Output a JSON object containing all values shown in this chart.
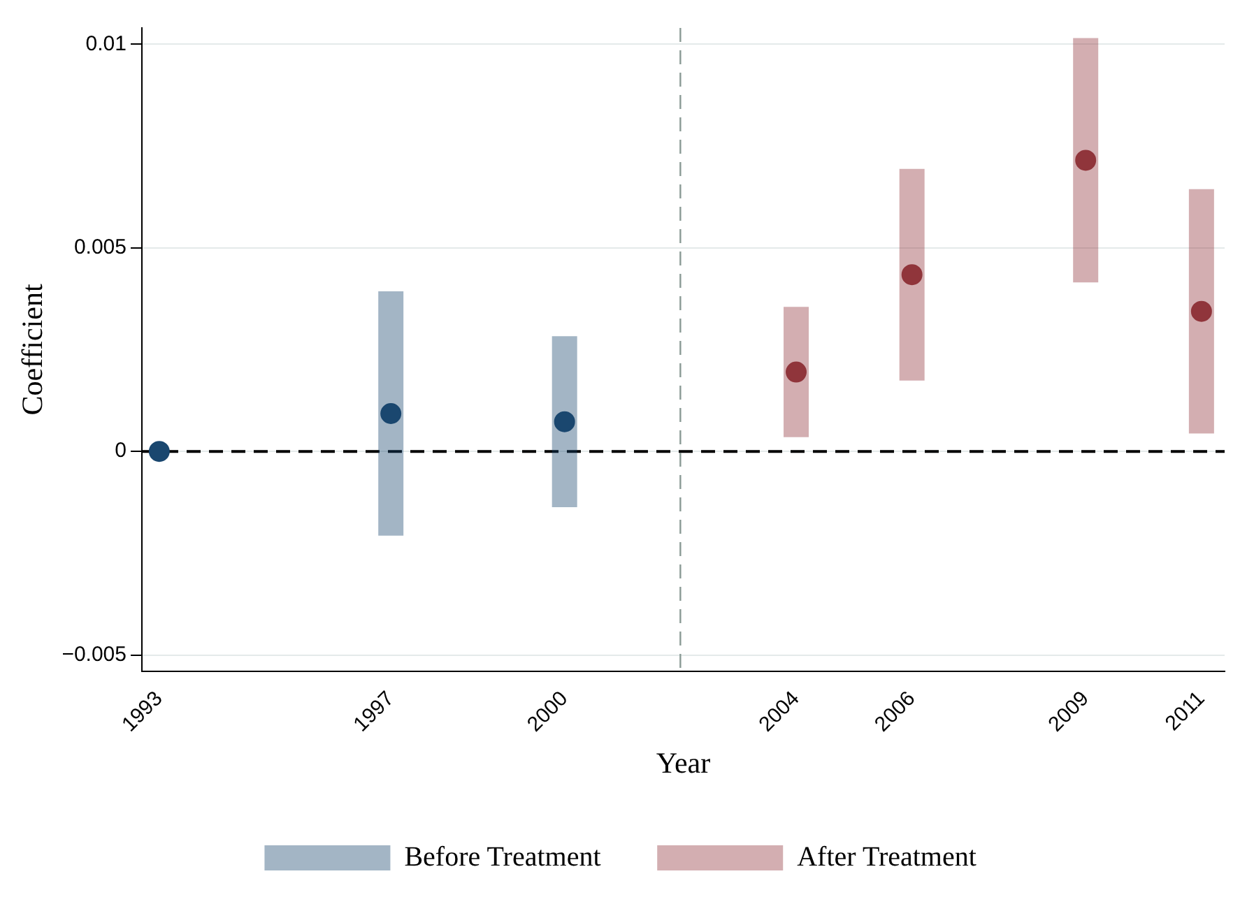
{
  "chart_data": {
    "type": "scatter",
    "xlabel": "Year",
    "ylabel": "Coefficient",
    "xlim": [
      1992.7,
      2011.4
    ],
    "xticks": [
      1993,
      1997,
      2000,
      2004,
      2006,
      2009,
      2011
    ],
    "ylim": [
      -0.0054,
      0.0104
    ],
    "yticks": [
      {
        "value": -0.005,
        "label": "−0.005"
      },
      0,
      0.005,
      0.01
    ],
    "grid": "y",
    "legend": "bottom",
    "marker": "circle",
    "series": [
      {
        "name": "Before Treatment",
        "color": "#1a476f",
        "x": [
          1993,
          1997,
          2000
        ],
        "values": [
          0,
          0.00093,
          0.00073
        ],
        "errors": [
          null,
          0.003,
          0.0021
        ]
      },
      {
        "name": "After Treatment",
        "color": "#90353b",
        "x": [
          2004,
          2006,
          2009,
          2011
        ],
        "values": [
          0.00195,
          0.00434,
          0.00715,
          0.00344
        ],
        "errors": [
          0.0016,
          0.0026,
          0.003,
          0.003
        ]
      }
    ],
    "ref_lines": [
      {
        "axis": "y",
        "value": 0,
        "color": "#000000",
        "line_style": "dashed"
      },
      {
        "axis": "x",
        "value": 2002,
        "color": "#8a9a95",
        "line_style": "dashed"
      }
    ]
  }
}
